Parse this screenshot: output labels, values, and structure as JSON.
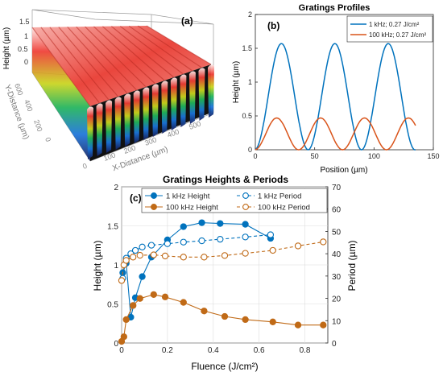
{
  "panels": {
    "a": {
      "label": "(a)",
      "z_axis_label": "Height (µm)",
      "y_axis_label": "Y-Distance (µm)",
      "x_axis_label": "X-Distance (µm)",
      "z_ticks": [
        "1.5",
        "1",
        "0.5",
        "0"
      ],
      "y_ticks": [
        "600",
        "400",
        "200",
        "0"
      ],
      "x_ticks": [
        "0",
        "100",
        "200",
        "300",
        "400",
        "500"
      ]
    }
  },
  "chart_data": [
    {
      "panel": "b",
      "type": "line",
      "panel_label": "(b)",
      "title": "Gratings Profiles",
      "xlabel": "Position (µm)",
      "ylabel": "Height (µm)",
      "xlim": [
        0,
        150
      ],
      "ylim": [
        0,
        2
      ],
      "xticks": [
        0,
        50,
        100,
        150
      ],
      "yticks": [
        0,
        0.5,
        1,
        1.5,
        2
      ],
      "legend_position": "top-right",
      "series": [
        {
          "name": "1 kHz; 0.27 J/cm²",
          "color": "#0072BD",
          "profile": {
            "start": 0,
            "end": 135,
            "peak_height": 1.57,
            "peaks": [
              22,
              67,
              112
            ],
            "period": 45
          }
        },
        {
          "name": "100 kHz; 0.27 J/cm²",
          "color": "#D95319",
          "profile": {
            "start": 0,
            "end": 135,
            "peak_height": 0.47,
            "peaks": [
              18,
              55,
              92,
              129
            ],
            "period": 37
          }
        }
      ]
    },
    {
      "panel": "c",
      "type": "line",
      "panel_label": "(c)",
      "title": "Gratings Heights & Periods",
      "xlabel": "Fluence (J/cm²)",
      "ylabel_left": "Height (µm)",
      "ylabel_right": "Period (µm)",
      "xlim": [
        0,
        0.9
      ],
      "ylim_left": [
        0,
        2
      ],
      "ylim_right": [
        0,
        70
      ],
      "xticks": [
        0,
        0.2,
        0.4,
        0.6,
        0.8
      ],
      "yticks_left": [
        0,
        0.5,
        1,
        1.5,
        2
      ],
      "yticks_right": [
        0,
        10,
        20,
        30,
        40,
        50,
        60,
        70
      ],
      "legend_position": "top",
      "series": [
        {
          "name": "1 kHz Height",
          "axis": "left",
          "style": "solid-filled",
          "color": "#0072BD",
          "x": [
            0.005,
            0.02,
            0.04,
            0.06,
            0.09,
            0.13,
            0.2,
            0.27,
            0.35,
            0.43,
            0.54,
            0.65
          ],
          "y": [
            0.9,
            1.02,
            0.33,
            0.58,
            0.85,
            1.1,
            1.32,
            1.49,
            1.54,
            1.53,
            1.52,
            1.34
          ]
        },
        {
          "name": "1 kHz Period",
          "axis": "right",
          "style": "dashed-open",
          "color": "#0072BD",
          "x": [
            0.005,
            0.02,
            0.04,
            0.06,
            0.09,
            0.13,
            0.2,
            0.27,
            0.35,
            0.43,
            0.54,
            0.65
          ],
          "y": [
            29,
            38,
            40,
            41.5,
            43,
            43.8,
            44.5,
            45.2,
            45.8,
            46.5,
            47.5,
            48.5
          ]
        },
        {
          "name": "100 kHz Height",
          "axis": "left",
          "style": "solid-filled",
          "color": "#C06A17",
          "x": [
            0.0,
            0.01,
            0.02,
            0.05,
            0.08,
            0.14,
            0.19,
            0.27,
            0.36,
            0.45,
            0.54,
            0.66,
            0.77,
            0.88
          ],
          "y": [
            0.02,
            0.08,
            0.3,
            0.48,
            0.57,
            0.62,
            0.59,
            0.52,
            0.41,
            0.34,
            0.3,
            0.27,
            0.23,
            0.23
          ]
        },
        {
          "name": "100 kHz Period",
          "axis": "right",
          "style": "dashed-open",
          "color": "#C06A17",
          "x": [
            0.0,
            0.01,
            0.02,
            0.05,
            0.08,
            0.14,
            0.19,
            0.27,
            0.36,
            0.45,
            0.54,
            0.66,
            0.77,
            0.88
          ],
          "y": [
            28,
            35,
            37,
            38.5,
            39.3,
            39.5,
            39,
            38.5,
            38.5,
            39.2,
            40.2,
            41.5,
            43.5,
            45.3
          ]
        }
      ]
    }
  ],
  "colors": {
    "blue": "#0072BD",
    "orange": "#D95319",
    "orange_c": "#C06A17",
    "axis": "#262626",
    "grid": "#dcdcdc"
  }
}
